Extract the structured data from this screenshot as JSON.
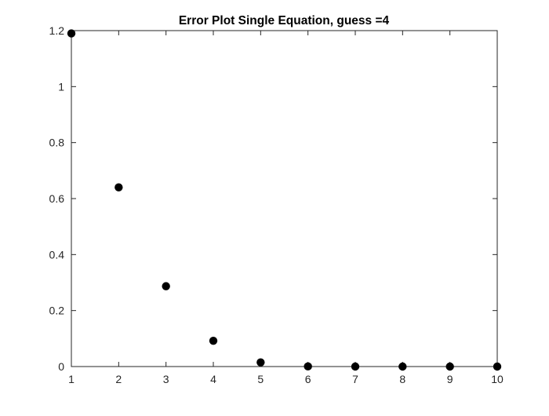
{
  "chart_data": {
    "type": "scatter",
    "title": "Error Plot Single Equation, guess =4",
    "xlabel": "",
    "ylabel": "",
    "xlim": [
      1,
      10
    ],
    "ylim": [
      0,
      1.2
    ],
    "x_ticks": [
      "1",
      "2",
      "3",
      "4",
      "5",
      "6",
      "7",
      "8",
      "9",
      "10"
    ],
    "y_ticks": [
      "0",
      "0.2",
      "0.4",
      "0.6",
      "0.8",
      "1",
      "1.2"
    ],
    "grid": false,
    "series": [
      {
        "x": [
          1,
          2,
          3,
          4,
          5,
          6,
          7,
          8,
          9,
          10
        ],
        "y": [
          1.19,
          0.64,
          0.287,
          0.092,
          0.015,
          0.0005,
          0,
          0,
          0,
          0
        ]
      }
    ],
    "marker_color": "#000000",
    "axis_color": "#262626"
  }
}
